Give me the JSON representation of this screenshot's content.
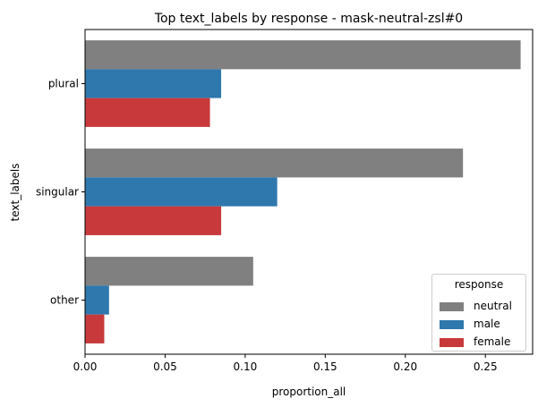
{
  "chart_data": {
    "type": "bar",
    "orientation": "horizontal",
    "title": "Top  text_labels by response - mask-neutral-zsl#0",
    "xlabel": "proportion_all",
    "ylabel": "text_labels",
    "categories": [
      "plural",
      "singular",
      "other"
    ],
    "series": [
      {
        "name": "neutral",
        "color": "#808080",
        "values": [
          0.272,
          0.236,
          0.105
        ]
      },
      {
        "name": "male",
        "color": "#2e78ad",
        "values": [
          0.085,
          0.12,
          0.015
        ]
      },
      {
        "name": "female",
        "color": "#c8393b",
        "values": [
          0.078,
          0.085,
          0.012
        ]
      }
    ],
    "xlim": [
      0,
      0.2795
    ],
    "xticks": [
      0.0,
      0.05,
      0.1,
      0.15,
      0.2,
      0.25
    ],
    "xtick_labels": [
      "0.00",
      "0.05",
      "0.10",
      "0.15",
      "0.20",
      "0.25"
    ],
    "grid": false,
    "legend": {
      "title": "response",
      "position": "lower-right"
    }
  }
}
